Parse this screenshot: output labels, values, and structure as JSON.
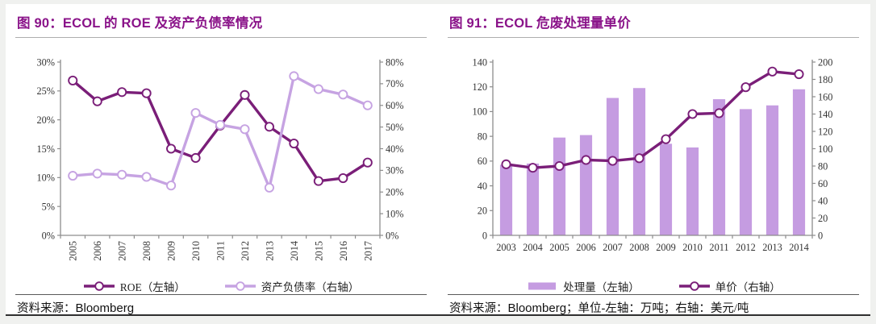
{
  "footers": [
    {
      "label": "资料来源：",
      "source": "Bloomberg",
      "extra": ""
    },
    {
      "label": "资料来源：",
      "source": "Bloomberg",
      "extra": "；单位-左轴：万吨；右轴：美元/吨"
    }
  ],
  "chart_data": [
    {
      "type": "line",
      "title": "图 90：ECOL 的 ROE 及资产负债率情况",
      "categories": [
        "2005",
        "2006",
        "2007",
        "2008",
        "2009",
        "2010",
        "2011",
        "2012",
        "2013",
        "2014",
        "2015",
        "2016",
        "2017"
      ],
      "series": [
        {
          "name": "ROE（左轴）",
          "type": "line",
          "axis": "left",
          "color": "#7a1e78",
          "values": [
            26.8,
            23.2,
            24.8,
            24.6,
            15.0,
            13.4,
            19.0,
            24.3,
            18.8,
            15.9,
            9.4,
            9.9,
            12.6
          ]
        },
        {
          "name": "资产负债率（右轴）",
          "type": "line",
          "axis": "right",
          "color": "#c6a3e2",
          "values": [
            27.5,
            28.5,
            28.0,
            27.0,
            23.0,
            56.5,
            51.0,
            49.0,
            22.0,
            73.5,
            67.5,
            65.0,
            60.0
          ]
        }
      ],
      "left_axis": {
        "min": 0,
        "max": 30,
        "step": 5,
        "suffix": "%"
      },
      "right_axis": {
        "min": 0,
        "max": 80,
        "step": 10,
        "suffix": "%"
      },
      "x_labels_rotated": true,
      "grid": false,
      "legend_position": "bottom"
    },
    {
      "type": "bar",
      "title": "图 91：ECOL 危废处理量单价",
      "categories": [
        "2003",
        "2004",
        "2005",
        "2006",
        "2007",
        "2008",
        "2009",
        "2010",
        "2011",
        "2012",
        "2013",
        "2014"
      ],
      "series": [
        {
          "name": "处理量（左轴）",
          "type": "bar",
          "axis": "left",
          "color": "#c59ce1",
          "values": [
            57,
            58,
            79,
            81,
            111,
            119,
            74,
            71,
            110,
            102,
            105,
            118
          ]
        },
        {
          "name": "单价（右轴）",
          "type": "line",
          "axis": "right",
          "color": "#7a1e78",
          "values": [
            82,
            78,
            80,
            87,
            86,
            89,
            111,
            140,
            141,
            171,
            189,
            186
          ]
        }
      ],
      "left_axis": {
        "min": 0,
        "max": 140,
        "step": 20,
        "suffix": ""
      },
      "right_axis": {
        "min": 0,
        "max": 200,
        "step": 20,
        "suffix": ""
      },
      "x_labels_rotated": false,
      "grid": false,
      "legend_position": "bottom"
    }
  ]
}
